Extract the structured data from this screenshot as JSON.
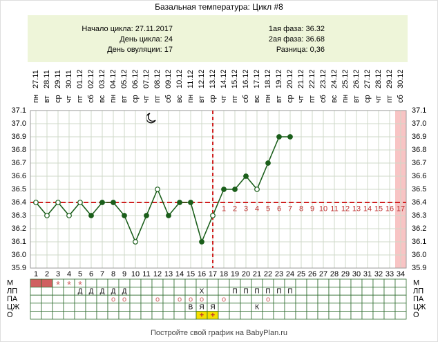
{
  "chart_data": {
    "type": "line",
    "title": "Базальная температура: Цикл #8",
    "info": {
      "left": [
        "Начало цикла: 27.11.2017",
        "День цикла: 24",
        "День овуляции: 17"
      ],
      "right": [
        "1ая фаза: 36.32",
        "2ая фаза: 36.68",
        "Разница: 0,36"
      ]
    },
    "x": [
      1,
      2,
      3,
      4,
      5,
      6,
      7,
      8,
      9,
      10,
      11,
      12,
      13,
      14,
      15,
      16,
      17,
      18,
      19,
      20,
      21,
      22,
      23,
      24,
      25,
      26,
      27,
      28,
      29,
      30,
      31,
      32,
      33,
      34
    ],
    "xlim": [
      0.5,
      34.5
    ],
    "dates": [
      "27.11",
      "28.11",
      "29.11",
      "30.11",
      "01.12",
      "02.12",
      "03.12",
      "04.12",
      "05.12",
      "06.12",
      "07.12",
      "08.12",
      "09.12",
      "10.12",
      "11.12",
      "12.12",
      "13.12",
      "14.12",
      "15.12",
      "16.12",
      "17.12",
      "18.12",
      "19.12",
      "20.12",
      "21.12",
      "22.12",
      "23.12",
      "24.12",
      "25.12",
      "26.12",
      "27.12",
      "28.12",
      "29.12",
      "30.12"
    ],
    "weekdays": [
      "пн",
      "вт",
      "ср",
      "чт",
      "пт",
      "сб",
      "вс",
      "пн",
      "вт",
      "ср",
      "чт",
      "пт",
      "сб",
      "вс",
      "пн",
      "вт",
      "ср",
      "чт",
      "пт",
      "сб",
      "вс",
      "пн",
      "вт",
      "ср",
      "чт",
      "пт",
      "сб",
      "вс",
      "пн",
      "вт",
      "ср",
      "чт",
      "пт",
      "сб"
    ],
    "series": [
      {
        "name": "Температура",
        "color": "#1a5e1a",
        "values": [
          36.4,
          36.3,
          36.4,
          36.3,
          36.4,
          36.3,
          36.4,
          36.4,
          36.3,
          36.1,
          36.3,
          36.5,
          36.3,
          36.4,
          36.4,
          36.1,
          36.3,
          36.5,
          36.5,
          36.6,
          36.5,
          36.7,
          36.9,
          36.9,
          null,
          null,
          null,
          null,
          null,
          null,
          null,
          null,
          null,
          null
        ],
        "point_style": [
          "hollow",
          "hollow",
          "hollow",
          "hollow",
          "hollow",
          "filled",
          "filled",
          "filled",
          "filled",
          "hollow",
          "filled",
          "hollow",
          "filled",
          "filled",
          "filled",
          "filled",
          "hollow",
          "filled",
          "filled",
          "filled",
          "hollow",
          "filled",
          "filled",
          "filled",
          null,
          null,
          null,
          null,
          null,
          null,
          null,
          null,
          null,
          null
        ]
      }
    ],
    "ylim": [
      35.9,
      37.1
    ],
    "yticks": [
      35.9,
      {
        "value": 36,
        "label": "36.0"
      },
      36.1,
      36.2,
      36.3,
      36.4,
      36.5,
      36.6,
      36.7,
      36.8,
      36.9,
      {
        "value": 37,
        "label": "37.0"
      },
      37.1
    ],
    "grid": true,
    "cover_line": 36.4,
    "ovulation_day": 17,
    "highlight_day": 34,
    "luteal_days": [
      null,
      null,
      null,
      null,
      null,
      null,
      null,
      null,
      null,
      null,
      null,
      null,
      null,
      null,
      null,
      null,
      null,
      1,
      2,
      3,
      4,
      5,
      6,
      7,
      8,
      9,
      10,
      11,
      12,
      13,
      14,
      15,
      16,
      17
    ],
    "rows": [
      {
        "label": "М",
        "cells": [
          null,
          null,
          "*",
          "*",
          "*",
          null,
          null,
          null,
          null,
          null,
          null,
          null,
          null,
          null,
          null,
          null,
          null,
          null,
          null,
          null,
          null,
          null,
          null,
          null,
          null,
          null,
          null,
          null,
          null,
          null,
          null,
          null,
          null,
          null
        ],
        "fills": [
          "#d06060",
          "#d06060",
          null,
          null,
          null,
          null,
          null,
          null,
          null,
          null,
          null,
          null,
          null,
          null,
          null,
          null,
          null,
          null,
          null,
          null,
          null,
          null,
          null,
          null,
          null,
          null,
          null,
          null,
          null,
          null,
          null,
          null,
          null,
          null
        ]
      },
      {
        "label": "ЛП",
        "cells": [
          null,
          null,
          null,
          null,
          "Д",
          "Д",
          "Д",
          "Д",
          "Д",
          null,
          null,
          null,
          null,
          null,
          null,
          "X",
          null,
          null,
          "П",
          "П",
          "П",
          "П",
          "П",
          "П",
          null,
          null,
          null,
          null,
          null,
          null,
          null,
          null,
          null,
          null
        ]
      },
      {
        "label": "ПА",
        "cells": [
          null,
          null,
          null,
          null,
          null,
          null,
          null,
          "o",
          "o",
          null,
          null,
          "o",
          null,
          "o",
          "o",
          "o",
          null,
          "o",
          null,
          null,
          null,
          "o",
          null,
          null,
          null,
          null,
          null,
          null,
          null,
          null,
          null,
          null,
          null,
          null
        ]
      },
      {
        "label": "ЦЖ",
        "cells": [
          null,
          null,
          null,
          null,
          null,
          null,
          null,
          null,
          null,
          null,
          null,
          null,
          null,
          null,
          "В",
          "Я",
          "Я",
          null,
          null,
          null,
          "К",
          null,
          null,
          null,
          null,
          null,
          null,
          null,
          null,
          null,
          null,
          null,
          null,
          null
        ]
      },
      {
        "label": "О",
        "cells": [
          null,
          null,
          null,
          null,
          null,
          null,
          null,
          null,
          null,
          null,
          null,
          null,
          null,
          null,
          null,
          "+",
          "+",
          null,
          null,
          null,
          null,
          null,
          null,
          null,
          null,
          null,
          null,
          null,
          null,
          null,
          null,
          null,
          null,
          null
        ],
        "fills": [
          null,
          null,
          null,
          null,
          null,
          null,
          null,
          null,
          null,
          null,
          null,
          null,
          null,
          null,
          null,
          "#f5e000",
          "#f5e000",
          null,
          null,
          null,
          null,
          null,
          null,
          null,
          null,
          null,
          null,
          null,
          null,
          null,
          null,
          null,
          null,
          null
        ]
      }
    ],
    "footer": "Постройте свой график на BabyPlan.ru"
  }
}
